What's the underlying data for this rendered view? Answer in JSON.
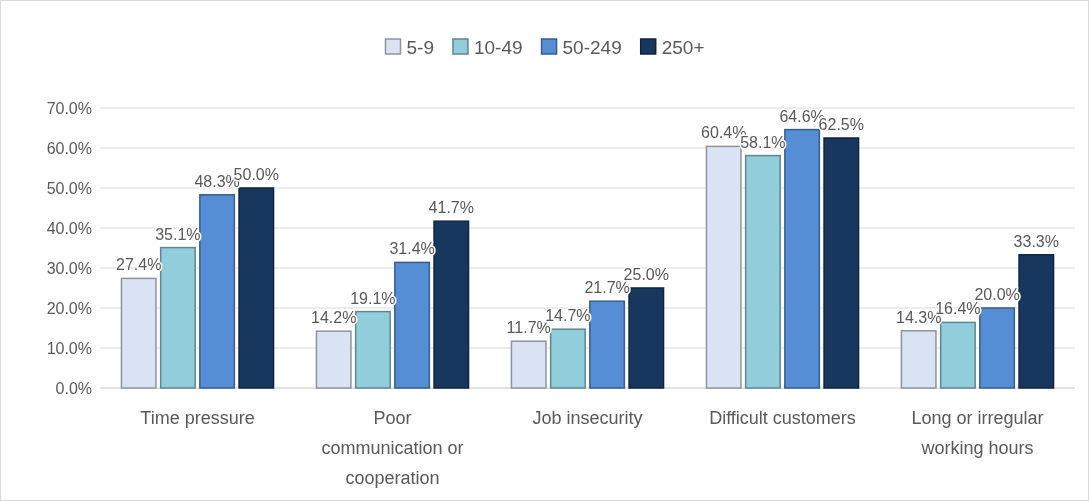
{
  "chart_data": {
    "type": "bar",
    "categories": [
      "Time pressure",
      "Poor communication or cooperation",
      "Job insecurity",
      "Difficult customers",
      "Long or irregular working hours"
    ],
    "series": [
      {
        "name": "5-9",
        "color": "#dae3f3",
        "values": [
          27.4,
          14.2,
          11.7,
          60.4,
          14.3
        ],
        "value_labels": [
          "27.4%",
          "14.2%",
          "11.7%",
          "60.4%",
          "14.3%"
        ]
      },
      {
        "name": "10-49",
        "color": "#92cddc",
        "values": [
          35.1,
          19.1,
          14.7,
          58.1,
          16.4
        ],
        "value_labels": [
          "35.1%",
          "19.1%",
          "14.7%",
          "58.1%",
          "16.4%"
        ]
      },
      {
        "name": "50-249",
        "color": "#558ed5",
        "values": [
          48.3,
          31.4,
          21.7,
          64.6,
          20.0
        ],
        "value_labels": [
          "48.3%",
          "31.4%",
          "21.7%",
          "64.6%",
          "20.0%"
        ]
      },
      {
        "name": "250+",
        "color": "#17375e",
        "values": [
          50.0,
          41.7,
          25.0,
          62.5,
          33.3
        ],
        "value_labels": [
          "50.0%",
          "41.7%",
          "25.0%",
          "62.5%",
          "33.3%"
        ]
      }
    ],
    "ylim": [
      0,
      70
    ],
    "yticks": [
      {
        "value": 0,
        "label": "0.0%"
      },
      {
        "value": 10,
        "label": "10.0%"
      },
      {
        "value": 20,
        "label": "20.0%"
      },
      {
        "value": 30,
        "label": "30.0%"
      },
      {
        "value": 40,
        "label": "40.0%"
      },
      {
        "value": 50,
        "label": "50.0%"
      },
      {
        "value": 60,
        "label": "60.0%"
      },
      {
        "value": 70,
        "label": "70.0%"
      }
    ],
    "grid": "y",
    "legend": "top"
  }
}
